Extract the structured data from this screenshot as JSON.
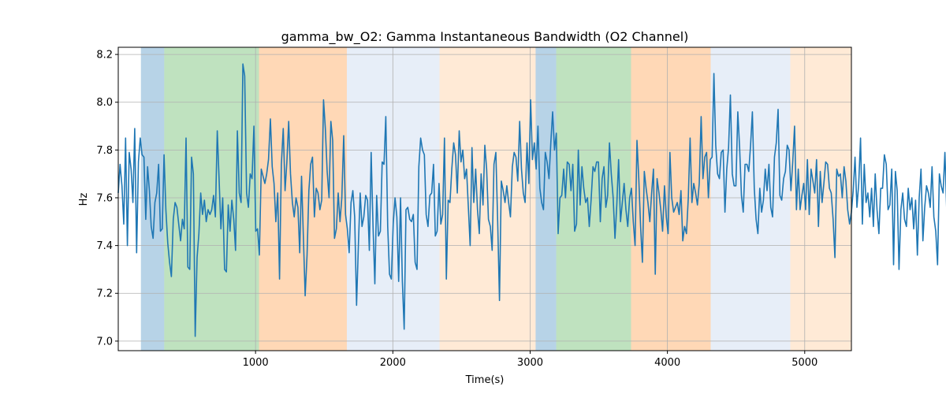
{
  "chart_data": {
    "type": "line",
    "title": "gamma_bw_O2: Gamma Instantaneous Bandwidth (O2 Channel)",
    "xlabel": "Time(s)",
    "ylabel": "Hz",
    "xlim": [
      0,
      5340
    ],
    "ylim": [
      6.96,
      8.23
    ],
    "xticks": [
      1000,
      2000,
      3000,
      4000,
      5000
    ],
    "yticks": [
      7.0,
      7.2,
      7.4,
      7.6,
      7.8,
      8.0,
      8.2
    ],
    "grid": true,
    "line_color": "#1f77b4",
    "bands": [
      {
        "start": 165,
        "end": 335,
        "color": "#1f77b4",
        "opacity": 0.32
      },
      {
        "start": 335,
        "end": 1025,
        "color": "#2ca02c",
        "opacity": 0.3
      },
      {
        "start": 1025,
        "end": 1665,
        "color": "#ff7f0e",
        "opacity": 0.3
      },
      {
        "start": 1665,
        "end": 2340,
        "color": "#aec7e8",
        "opacity": 0.3
      },
      {
        "start": 2340,
        "end": 3040,
        "color": "#ffbb78",
        "opacity": 0.3
      },
      {
        "start": 3040,
        "end": 3190,
        "color": "#1f77b4",
        "opacity": 0.32
      },
      {
        "start": 3190,
        "end": 3735,
        "color": "#2ca02c",
        "opacity": 0.3
      },
      {
        "start": 3735,
        "end": 4315,
        "color": "#ff7f0e",
        "opacity": 0.3
      },
      {
        "start": 4315,
        "end": 4895,
        "color": "#aec7e8",
        "opacity": 0.3
      },
      {
        "start": 4895,
        "end": 5340,
        "color": "#ffbb78",
        "opacity": 0.3
      }
    ],
    "series": [
      {
        "x_start": 0,
        "x_step": 13.35,
        "values": [
          7.62,
          7.74,
          7.65,
          7.49,
          7.85,
          7.4,
          7.79,
          7.72,
          7.58,
          7.89,
          7.37,
          7.75,
          7.85,
          7.78,
          7.77,
          7.51,
          7.73,
          7.63,
          7.48,
          7.43,
          7.58,
          7.62,
          7.74,
          7.46,
          7.47,
          7.78,
          7.55,
          7.41,
          7.33,
          7.27,
          7.51,
          7.58,
          7.56,
          7.49,
          7.42,
          7.51,
          7.47,
          7.85,
          7.31,
          7.3,
          7.77,
          7.7,
          7.02,
          7.35,
          7.45,
          7.62,
          7.53,
          7.59,
          7.5,
          7.55,
          7.53,
          7.55,
          7.61,
          7.52,
          7.88,
          7.68,
          7.47,
          7.6,
          7.3,
          7.29,
          7.57,
          7.46,
          7.59,
          7.51,
          7.38,
          7.88,
          7.62,
          7.58,
          8.16,
          8.11,
          7.62,
          7.56,
          7.7,
          7.68,
          7.9,
          7.46,
          7.47,
          7.36,
          7.72,
          7.69,
          7.66,
          7.7,
          7.76,
          7.93,
          7.73,
          7.66,
          7.5,
          7.62,
          7.26,
          7.74,
          7.89,
          7.63,
          7.75,
          7.92,
          7.7,
          7.58,
          7.52,
          7.6,
          7.56,
          7.37,
          7.69,
          7.44,
          7.19,
          7.36,
          7.63,
          7.74,
          7.77,
          7.52,
          7.64,
          7.62,
          7.55,
          7.59,
          8.01,
          7.89,
          7.71,
          7.6,
          7.92,
          7.84,
          7.43,
          7.47,
          7.62,
          7.5,
          7.6,
          7.86,
          7.53,
          7.47,
          7.37,
          7.58,
          7.63,
          7.52,
          7.15,
          7.4,
          7.62,
          7.48,
          7.52,
          7.61,
          7.59,
          7.38,
          7.79,
          7.48,
          7.24,
          7.61,
          7.44,
          7.46,
          7.75,
          7.74,
          7.94,
          7.48,
          7.28,
          7.26,
          7.49,
          7.6,
          7.52,
          7.25,
          7.6,
          7.25,
          7.05,
          7.55,
          7.56,
          7.51,
          7.5,
          7.53,
          7.33,
          7.3,
          7.73,
          7.85,
          7.8,
          7.78,
          7.53,
          7.48,
          7.61,
          7.62,
          7.74,
          7.44,
          7.46,
          7.66,
          7.49,
          7.53,
          7.85,
          7.26,
          7.59,
          7.58,
          7.72,
          7.83,
          7.78,
          7.62,
          7.88,
          7.75,
          7.8,
          7.68,
          7.72,
          7.56,
          7.4,
          7.81,
          7.58,
          7.72,
          7.55,
          7.45,
          7.7,
          7.57,
          7.82,
          7.72,
          7.51,
          7.48,
          7.38,
          7.74,
          7.79,
          7.5,
          7.17,
          7.67,
          7.63,
          7.58,
          7.65,
          7.58,
          7.52,
          7.73,
          7.79,
          7.77,
          7.67,
          7.92,
          7.72,
          7.62,
          7.58,
          7.83,
          7.66,
          8.01,
          7.76,
          7.83,
          7.72,
          7.9,
          7.64,
          7.58,
          7.55,
          7.79,
          7.75,
          7.68,
          7.83,
          7.96,
          7.8,
          7.87,
          7.45,
          7.6,
          7.61,
          7.72,
          7.6,
          7.75,
          7.74,
          7.63,
          7.74,
          7.46,
          7.49,
          7.8,
          7.57,
          7.73,
          7.64,
          7.58,
          7.6,
          7.48,
          7.59,
          7.73,
          7.71,
          7.75,
          7.75,
          7.5,
          7.68,
          7.73,
          7.56,
          7.61,
          7.83,
          7.7,
          7.6,
          7.43,
          7.57,
          7.76,
          7.5,
          7.58,
          7.66,
          7.55,
          7.48,
          7.6,
          7.64,
          7.5,
          7.4,
          7.84,
          7.68,
          7.48,
          7.33,
          7.71,
          7.64,
          7.58,
          7.5,
          7.62,
          7.72,
          7.28,
          7.68,
          7.62,
          7.55,
          7.46,
          7.65,
          7.52,
          7.45,
          7.79,
          7.6,
          7.54,
          7.56,
          7.58,
          7.53,
          7.63,
          7.42,
          7.48,
          7.45,
          7.6,
          7.85,
          7.58,
          7.66,
          7.62,
          7.57,
          7.66,
          7.94,
          7.68,
          7.77,
          7.79,
          7.6,
          7.76,
          7.77,
          8.12,
          7.82,
          7.7,
          7.68,
          7.79,
          7.8,
          7.54,
          7.72,
          7.81,
          8.03,
          7.7,
          7.65,
          7.65,
          7.96,
          7.81,
          7.61,
          7.54,
          7.74,
          7.74,
          7.71,
          7.82,
          7.96,
          7.64,
          7.51,
          7.45,
          7.64,
          7.54,
          7.59,
          7.72,
          7.63,
          7.74,
          7.56,
          7.52,
          7.77,
          7.83,
          7.97,
          7.61,
          7.59,
          7.68,
          7.71,
          7.82,
          7.8,
          7.63,
          7.75,
          7.9,
          7.55,
          7.72,
          7.55,
          7.61,
          7.66,
          7.55,
          7.76,
          7.53,
          7.72,
          7.67,
          7.62,
          7.76,
          7.48,
          7.71,
          7.58,
          7.66,
          7.75,
          7.74,
          7.64,
          7.62,
          7.51,
          7.35,
          7.72,
          7.69,
          7.7,
          7.6,
          7.73,
          7.67,
          7.55,
          7.49,
          7.54,
          7.63,
          7.77,
          7.56,
          7.66,
          7.85,
          7.49,
          7.74,
          7.58,
          7.62,
          7.52,
          7.64,
          7.48,
          7.7,
          7.55,
          7.45,
          7.64,
          7.64,
          7.78,
          7.74,
          7.55,
          7.57,
          7.72,
          7.32,
          7.71,
          7.63,
          7.3,
          7.55,
          7.62,
          7.51,
          7.48,
          7.64,
          7.55,
          7.6,
          7.47,
          7.59,
          7.36,
          7.6,
          7.72,
          7.42,
          7.56,
          7.65,
          7.62,
          7.56,
          7.73,
          7.52,
          7.46,
          7.32,
          7.7,
          7.65,
          7.62,
          7.79,
          7.55
        ]
      }
    ]
  }
}
